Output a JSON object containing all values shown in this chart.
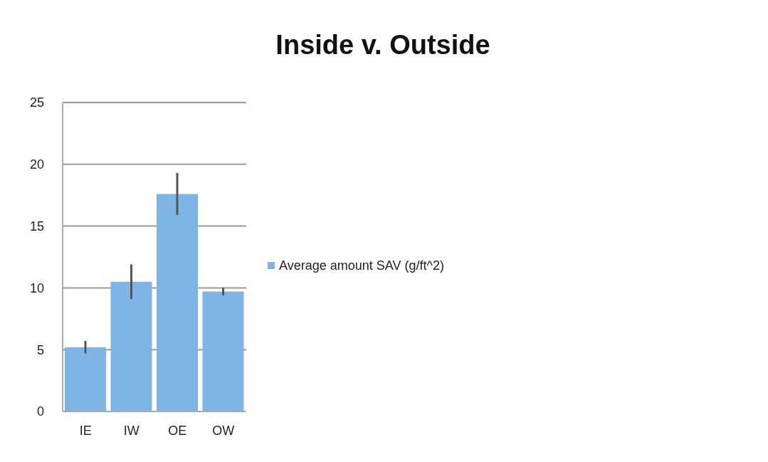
{
  "chart_data": {
    "type": "bar",
    "title": "Inside v. Outside",
    "categories": [
      "IE",
      "IW",
      "OE",
      "OW"
    ],
    "series": [
      {
        "name": "Average amount SAV (g/ft^2)",
        "color": "#7fb5e6",
        "values": [
          5.2,
          10.5,
          17.6,
          9.7
        ],
        "errors": [
          0.5,
          1.4,
          1.7,
          0.3
        ]
      }
    ],
    "ylim": [
      0,
      25
    ],
    "yticks": [
      0,
      5,
      10,
      15,
      20,
      25
    ],
    "grid": "y",
    "legend": "right"
  }
}
